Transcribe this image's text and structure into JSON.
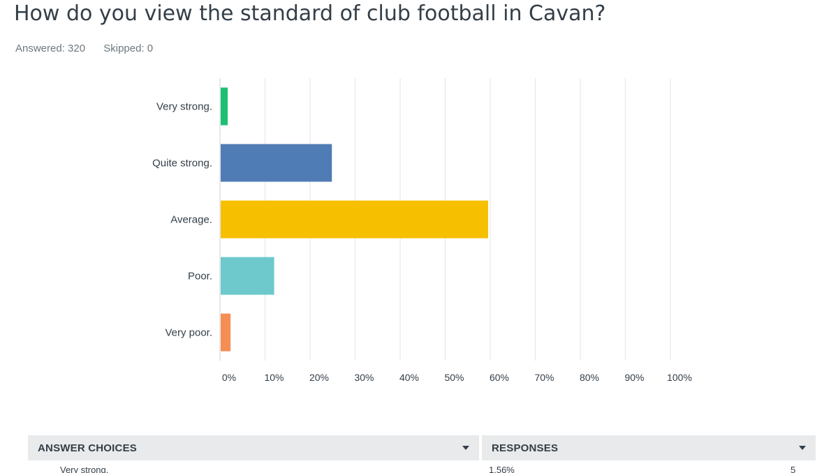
{
  "question": {
    "title": "How do you view the standard of club football in Cavan?",
    "answered": "Answered: 320",
    "skipped": "Skipped: 0"
  },
  "chart_data": {
    "type": "bar",
    "orientation": "horizontal",
    "categories": [
      "Very strong.",
      "Quite strong.",
      "Average.",
      "Poor.",
      "Very poor."
    ],
    "values": [
      1.56,
      24.69,
      59.38,
      11.88,
      2.19
    ],
    "colors": [
      "#1dbf73",
      "#507cb6",
      "#f6bf00",
      "#6ec9cc",
      "#f68d53"
    ],
    "xlim": [
      0,
      100
    ],
    "xticks": [
      "0%",
      "10%",
      "20%",
      "30%",
      "40%",
      "50%",
      "60%",
      "70%",
      "80%",
      "90%",
      "100%"
    ],
    "grid": true
  },
  "table": {
    "col_answer": "ANSWER CHOICES",
    "col_responses": "RESPONSES",
    "first_row": {
      "choice": "Very strong.",
      "percent": "1.56%",
      "count": "5"
    }
  }
}
